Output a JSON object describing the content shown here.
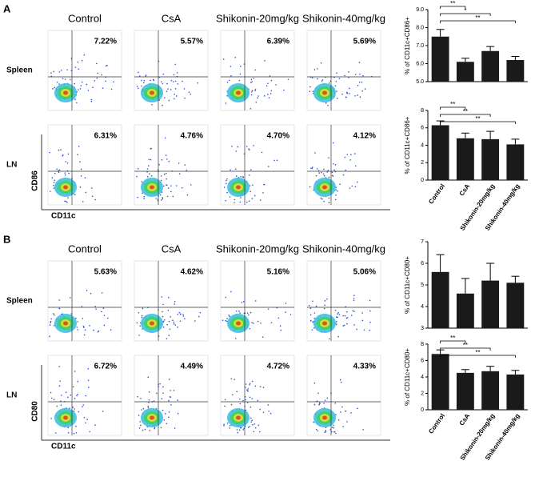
{
  "panels": [
    {
      "label": "A",
      "columns": [
        "Control",
        "CsA",
        "Shikonin-20mg/kg",
        "Shikonin-40mg/kg"
      ],
      "rows": [
        "Spleen",
        "LN"
      ],
      "percentages": [
        [
          "7.22%",
          "5.57%",
          "6.39%",
          "5.69%"
        ],
        [
          "6.31%",
          "4.76%",
          "4.70%",
          "4.12%"
        ]
      ],
      "y_axis": "CD86",
      "x_axis": "CD11c"
    },
    {
      "label": "B",
      "columns": [
        "Control",
        "CsA",
        "Shikonin-20mg/kg",
        "Shikonin-40mg/kg"
      ],
      "rows": [
        "Spleen",
        "LN"
      ],
      "percentages": [
        [
          "5.63%",
          "4.62%",
          "5.16%",
          "5.06%"
        ],
        [
          "6.72%",
          "4.49%",
          "4.72%",
          "4.33%"
        ]
      ],
      "y_axis": "CD80",
      "x_axis": "CD11c"
    }
  ],
  "chart_data": [
    {
      "type": "bar",
      "y_label": "% of CD11c+CD86+",
      "values": [
        7.5,
        6.1,
        6.7,
        6.2
      ],
      "errors": [
        0.4,
        0.2,
        0.25,
        0.2
      ],
      "ylim": [
        5,
        9
      ],
      "yticks": [
        {
          "value": 5,
          "label": "5.0"
        },
        {
          "value": 6,
          "label": "6.0"
        },
        {
          "value": 7,
          "label": "7.0"
        },
        {
          "value": 8,
          "label": "8.0"
        },
        {
          "value": 9,
          "label": "9.0"
        }
      ],
      "significance": [
        null,
        "**",
        "*",
        "**"
      ],
      "color": "#1a1a1a"
    },
    {
      "type": "bar",
      "y_label": "% of CD11c+CD86+",
      "categories": [
        "Control",
        "CsA",
        "Shikonin-20mg/kg",
        "Shikonin-40mg/kg"
      ],
      "values": [
        6.3,
        4.8,
        4.7,
        4.1
      ],
      "errors": [
        0.5,
        0.6,
        0.9,
        0.6
      ],
      "ylim": [
        0,
        8
      ],
      "yticks": [
        0,
        2,
        4,
        6,
        8
      ],
      "significance": [
        null,
        "**",
        "**",
        "**"
      ],
      "color": "#1a1a1a"
    },
    {
      "type": "bar",
      "y_label": "% of CD11c+CD80+",
      "values": [
        5.6,
        4.6,
        5.2,
        5.1
      ],
      "errors": [
        0.8,
        0.7,
        0.8,
        0.3
      ],
      "ylim": [
        3,
        7
      ],
      "yticks": [
        3,
        4,
        5,
        6,
        7
      ],
      "significance": [
        null,
        null,
        null,
        null
      ],
      "color": "#1a1a1a"
    },
    {
      "type": "bar",
      "y_label": "% of CD11c+CD80+",
      "categories": [
        "Control",
        "CsA",
        "Shikonin-20mg/kg",
        "Shikonin-40mg/kg"
      ],
      "values": [
        6.8,
        4.5,
        4.7,
        4.3
      ],
      "errors": [
        0.5,
        0.4,
        0.6,
        0.5
      ],
      "ylim": [
        0,
        8
      ],
      "yticks": [
        0,
        2,
        4,
        6,
        8
      ],
      "significance": [
        null,
        "**",
        "**",
        "**"
      ],
      "color": "#1a1a1a"
    }
  ]
}
